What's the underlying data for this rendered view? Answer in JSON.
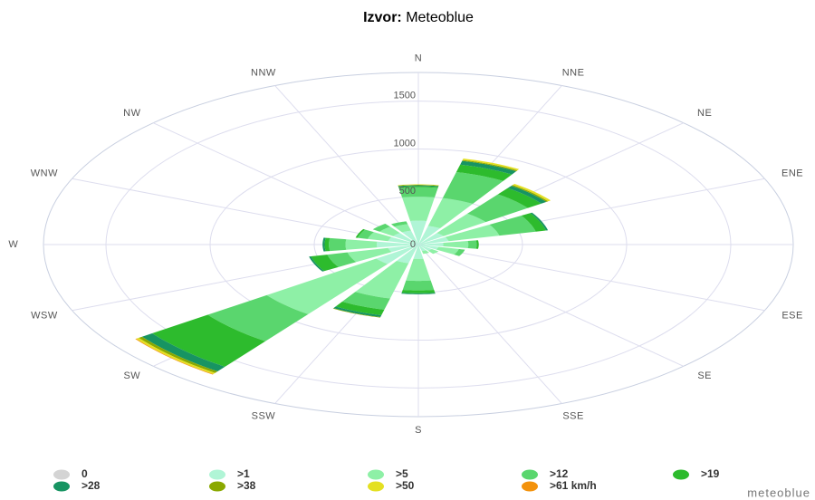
{
  "chart_data": {
    "type": "windrose",
    "title_label": "Izvor:",
    "title_text": "Meteoblue",
    "watermark": "meteoblue",
    "categories": [
      "N",
      "NNE",
      "NE",
      "ENE",
      null,
      "ESE",
      "SE",
      "SSE",
      "S",
      "SSW",
      "SW",
      "WSW",
      "W",
      "WNW",
      "NW",
      "NNW"
    ],
    "ylim": [
      0,
      1800
    ],
    "yticks": [
      0,
      500,
      1000,
      1500
    ],
    "grid": true,
    "series": [
      {
        "name": "0",
        "color": "#d4d4d4",
        "values": [
          0,
          0,
          0,
          0,
          0,
          0,
          0,
          0,
          0,
          0,
          0,
          0,
          0,
          0,
          0,
          0
        ]
      },
      {
        "name": ">1",
        "color": "#b0f5d6",
        "values": [
          250,
          200,
          150,
          150,
          120,
          100,
          80,
          70,
          150,
          200,
          250,
          150,
          200,
          150,
          150,
          150
        ]
      },
      {
        "name": ">5",
        "color": "#8ef0a6",
        "values": [
          250,
          300,
          250,
          250,
          120,
          100,
          40,
          30,
          230,
          380,
          650,
          200,
          150,
          100,
          80,
          70
        ]
      },
      {
        "name": ">12",
        "color": "#5ad66e",
        "values": [
          100,
          280,
          250,
          180,
          40,
          30,
          0,
          0,
          100,
          120,
          350,
          100,
          80,
          50,
          40,
          30
        ]
      },
      {
        "name": ">19",
        "color": "#2dbb2d",
        "values": [
          10,
          80,
          80,
          50,
          10,
          0,
          0,
          0,
          30,
          60,
          330,
          80,
          20,
          10,
          0,
          0
        ]
      },
      {
        "name": ">28",
        "color": "#179462",
        "values": [
          10,
          40,
          30,
          10,
          0,
          0,
          0,
          0,
          10,
          20,
          60,
          10,
          10,
          0,
          0,
          0
        ]
      },
      {
        "name": ">38",
        "color": "#8aa800",
        "values": [
          5,
          10,
          10,
          0,
          0,
          0,
          0,
          0,
          0,
          5,
          20,
          0,
          0,
          0,
          0,
          0
        ]
      },
      {
        "name": ">50",
        "color": "#e4e022",
        "values": [
          5,
          15,
          15,
          0,
          0,
          0,
          0,
          0,
          0,
          0,
          15,
          0,
          0,
          0,
          0,
          0
        ]
      },
      {
        "name": ">61 km/h",
        "color": "#f3920c",
        "values": [
          0,
          0,
          0,
          0,
          0,
          0,
          0,
          0,
          0,
          0,
          5,
          0,
          0,
          0,
          0,
          0
        ]
      }
    ]
  }
}
